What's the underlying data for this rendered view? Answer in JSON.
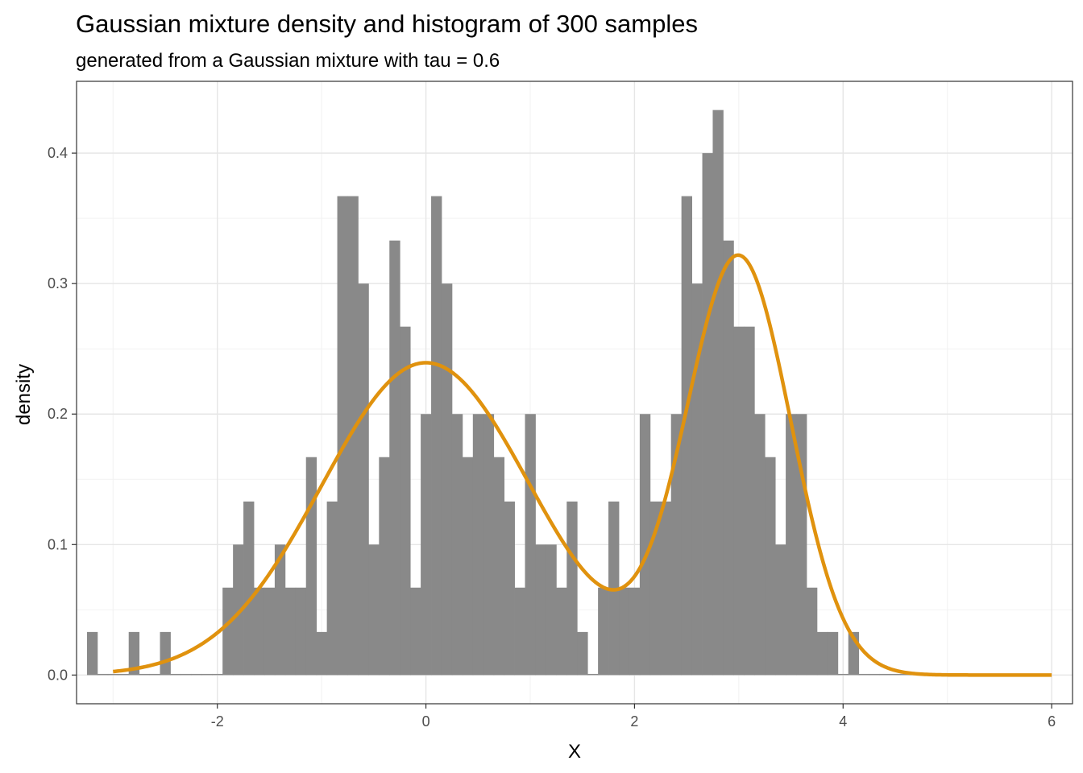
{
  "chart_data": {
    "type": "bar",
    "title": "Gaussian mixture density and histogram of 300 samples",
    "subtitle": "generated from a Gaussian mixture with tau = 0.6",
    "xlabel": "X",
    "ylabel": "density",
    "xlim": [
      -3.35,
      6.2
    ],
    "ylim": [
      -0.022,
      0.455
    ],
    "x_ticks": [
      -2,
      0,
      2,
      4,
      6
    ],
    "x_tick_labels": [
      "-2",
      "0",
      "2",
      "4",
      "6"
    ],
    "y_ticks": [
      0.0,
      0.1,
      0.2,
      0.3,
      0.4
    ],
    "y_tick_labels": [
      "0.0",
      "0.1",
      "0.2",
      "0.3",
      "0.4"
    ],
    "grid": true,
    "panel_border": true,
    "colors": {
      "bars": "#898989",
      "curve": "#e0920e",
      "grid_major": "#e6e6e6",
      "grid_minor": "#f2f2f2",
      "border": "#333333"
    },
    "histogram": {
      "bin_start": -3.25,
      "bin_width": 0.1,
      "values": [
        0.033,
        0,
        0,
        0,
        0.033,
        0,
        0,
        0.033,
        0,
        0,
        0,
        0,
        0,
        0.067,
        0.1,
        0.133,
        0.067,
        0.067,
        0.1,
        0.067,
        0.067,
        0.167,
        0.033,
        0.133,
        0.367,
        0.367,
        0.3,
        0.1,
        0.167,
        0.333,
        0.267,
        0.067,
        0.2,
        0.367,
        0.3,
        0.2,
        0.167,
        0.2,
        0.2,
        0.167,
        0.133,
        0.067,
        0.2,
        0.1,
        0.1,
        0.067,
        0.133,
        0.033,
        0,
        0.067,
        0.133,
        0.067,
        0.067,
        0.2,
        0.133,
        0.133,
        0.2,
        0.367,
        0.3,
        0.4,
        0.433,
        0.333,
        0.267,
        0.267,
        0.2,
        0.167,
        0.1,
        0.2,
        0.2,
        0.067,
        0.033,
        0.033,
        0,
        0.033,
        0,
        0,
        0,
        0,
        0,
        0,
        0,
        0,
        0,
        0,
        0,
        0,
        0,
        0,
        0,
        0
      ]
    },
    "density_curve": {
      "name": "",
      "x_range": [
        -3,
        6
      ],
      "components": [
        {
          "weight": 0.6,
          "mean": 0,
          "sd": 1
        },
        {
          "weight": 0.4,
          "mean": 3,
          "sd": 0.5
        }
      ]
    }
  }
}
